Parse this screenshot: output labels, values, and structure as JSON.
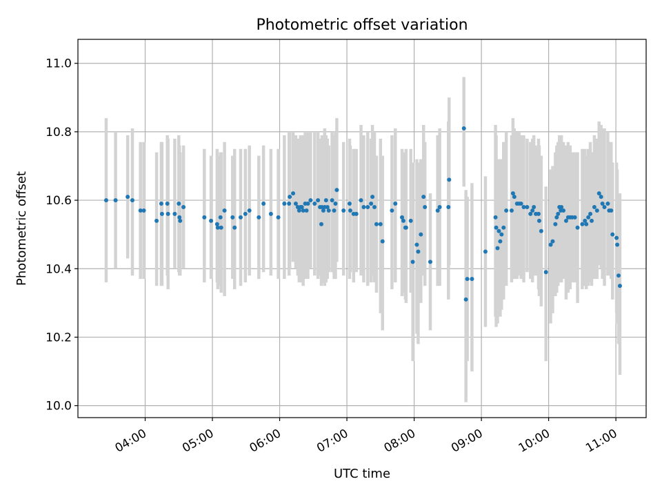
{
  "chart_data": {
    "type": "scatter",
    "title": "Photometric offset variation",
    "xlabel": "UTC time",
    "ylabel": "Photometric offset",
    "x_unit": "decimal hours (UTC)",
    "xlim": [
      3.0,
      11.45
    ],
    "ylim": [
      9.965,
      11.07
    ],
    "x_ticks": [
      {
        "value": 4,
        "label": "04:00"
      },
      {
        "value": 5,
        "label": "05:00"
      },
      {
        "value": 6,
        "label": "06:00"
      },
      {
        "value": 7,
        "label": "07:00"
      },
      {
        "value": 8,
        "label": "08:00"
      },
      {
        "value": 9,
        "label": "09:00"
      },
      {
        "value": 10,
        "label": "10:00"
      },
      {
        "value": 11,
        "label": "11:00"
      }
    ],
    "y_ticks": [
      {
        "value": 10.0,
        "label": "10.0"
      },
      {
        "value": 10.2,
        "label": "10.2"
      },
      {
        "value": 10.4,
        "label": "10.4"
      },
      {
        "value": 10.6,
        "label": "10.6"
      },
      {
        "value": 10.8,
        "label": "10.8"
      },
      {
        "value": 11.0,
        "label": "11.0"
      }
    ],
    "grid": true,
    "colors": {
      "points": "#1f77b4",
      "errorbars": "#d3d3d3",
      "grid": "#b0b0b0"
    },
    "series": [
      {
        "values": [
          [
            3.42,
            10.6,
            10.36,
            10.84
          ],
          [
            3.56,
            10.6,
            10.4,
            10.8
          ],
          [
            3.74,
            10.61,
            10.43,
            10.79
          ],
          [
            3.81,
            10.6,
            10.38,
            10.81
          ],
          [
            3.93,
            10.57,
            10.37,
            10.77
          ],
          [
            3.98,
            10.57,
            10.37,
            10.77
          ],
          [
            4.17,
            10.54,
            10.35,
            10.74
          ],
          [
            4.24,
            10.59,
            10.35,
            10.77
          ],
          [
            4.25,
            10.56,
            10.35,
            10.77
          ],
          [
            4.33,
            10.59,
            10.38,
            10.79
          ],
          [
            4.34,
            10.56,
            10.34,
            10.78
          ],
          [
            4.44,
            10.56,
            10.4,
            10.78
          ],
          [
            4.5,
            10.59,
            10.39,
            10.79
          ],
          [
            4.51,
            10.55,
            10.38,
            10.76
          ],
          [
            4.52,
            10.54,
            10.38,
            10.74
          ],
          [
            4.57,
            10.58,
            10.4,
            10.76
          ],
          [
            4.88,
            10.55,
            10.36,
            10.75
          ],
          [
            4.98,
            10.54,
            10.37,
            10.73
          ],
          [
            5.07,
            10.53,
            10.36,
            10.75
          ],
          [
            5.08,
            10.52,
            10.34,
            10.73
          ],
          [
            5.12,
            10.55,
            10.35,
            10.74
          ],
          [
            5.13,
            10.52,
            10.33,
            10.74
          ],
          [
            5.18,
            10.57,
            10.32,
            10.77
          ],
          [
            5.3,
            10.55,
            10.37,
            10.73
          ],
          [
            5.33,
            10.52,
            10.34,
            10.75
          ],
          [
            5.42,
            10.55,
            10.35,
            10.75
          ],
          [
            5.49,
            10.56,
            10.36,
            10.75
          ],
          [
            5.55,
            10.57,
            10.38,
            10.76
          ],
          [
            5.69,
            10.55,
            10.37,
            10.73
          ],
          [
            5.76,
            10.59,
            10.39,
            10.76
          ],
          [
            5.87,
            10.56,
            10.38,
            10.75
          ],
          [
            5.98,
            10.55,
            10.37,
            10.75
          ],
          [
            6.07,
            10.59,
            10.37,
            10.79
          ],
          [
            6.14,
            10.59,
            10.38,
            10.8
          ],
          [
            6.15,
            10.61,
            10.4,
            10.8
          ],
          [
            6.2,
            10.62,
            10.42,
            10.8
          ],
          [
            6.24,
            10.59,
            10.4,
            10.79
          ],
          [
            6.27,
            10.58,
            10.38,
            10.78
          ],
          [
            6.29,
            10.57,
            10.36,
            10.78
          ],
          [
            6.31,
            10.58,
            10.37,
            10.79
          ],
          [
            6.33,
            10.58,
            10.36,
            10.78
          ],
          [
            6.35,
            10.57,
            10.35,
            10.79
          ],
          [
            6.38,
            10.59,
            10.37,
            10.8
          ],
          [
            6.4,
            10.57,
            10.38,
            10.76
          ],
          [
            6.42,
            10.59,
            10.37,
            10.8
          ],
          [
            6.46,
            10.6,
            10.4,
            10.8
          ],
          [
            6.52,
            10.59,
            10.38,
            10.8
          ],
          [
            6.57,
            10.6,
            10.37,
            10.8
          ],
          [
            6.6,
            10.58,
            10.38,
            10.78
          ],
          [
            6.62,
            10.53,
            10.35,
            10.73
          ],
          [
            6.63,
            10.58,
            10.36,
            10.79
          ],
          [
            6.65,
            10.57,
            10.36,
            10.78
          ],
          [
            6.67,
            10.58,
            10.35,
            10.81
          ],
          [
            6.69,
            10.6,
            10.36,
            10.79
          ],
          [
            6.71,
            10.58,
            10.37,
            10.78
          ],
          [
            6.73,
            10.57,
            10.39,
            10.76
          ],
          [
            6.78,
            10.6,
            10.39,
            10.8
          ],
          [
            6.81,
            10.57,
            10.37,
            10.79
          ],
          [
            6.83,
            10.59,
            10.37,
            10.8
          ],
          [
            6.85,
            10.63,
            10.42,
            10.84
          ],
          [
            6.95,
            10.57,
            10.38,
            10.77
          ],
          [
            7.04,
            10.59,
            10.37,
            10.78
          ],
          [
            7.05,
            10.57,
            10.39,
            10.76
          ],
          [
            7.1,
            10.56,
            10.36,
            10.75
          ],
          [
            7.14,
            10.56,
            10.39,
            10.75
          ],
          [
            7.21,
            10.6,
            10.38,
            10.82
          ],
          [
            7.25,
            10.58,
            10.36,
            10.79
          ],
          [
            7.31,
            10.58,
            10.35,
            10.8
          ],
          [
            7.36,
            10.59,
            10.36,
            10.78
          ],
          [
            7.38,
            10.61,
            10.38,
            10.82
          ],
          [
            7.41,
            10.58,
            10.36,
            10.8
          ],
          [
            7.44,
            10.53,
            10.33,
            10.73
          ],
          [
            7.5,
            10.53,
            10.27,
            10.78
          ],
          [
            7.53,
            10.48,
            10.22,
            10.73
          ],
          [
            7.67,
            10.57,
            10.34,
            10.79
          ],
          [
            7.72,
            10.59,
            10.36,
            10.81
          ],
          [
            7.82,
            10.55,
            10.32,
            10.75
          ],
          [
            7.84,
            10.54,
            10.33,
            10.74
          ],
          [
            7.87,
            10.52,
            10.31,
            10.73
          ],
          [
            7.88,
            10.52,
            10.3,
            10.75
          ],
          [
            7.95,
            10.54,
            10.33,
            10.75
          ],
          [
            7.98,
            10.42,
            10.13,
            10.71
          ],
          [
            8.04,
            10.47,
            10.21,
            10.72
          ],
          [
            8.06,
            10.45,
            10.18,
            10.71
          ],
          [
            8.1,
            10.5,
            10.3,
            10.72
          ],
          [
            8.14,
            10.61,
            10.38,
            10.82
          ],
          [
            8.16,
            10.58,
            10.35,
            10.77
          ],
          [
            8.24,
            10.42,
            10.22,
            10.62
          ],
          [
            8.35,
            10.57,
            10.35,
            10.79
          ],
          [
            8.38,
            10.58,
            10.35,
            10.81
          ],
          [
            8.51,
            10.58,
            10.31,
            10.83
          ],
          [
            8.52,
            10.66,
            10.41,
            10.9
          ],
          [
            8.74,
            10.81,
            10.64,
            10.96
          ],
          [
            8.77,
            10.31,
            10.01,
            10.63
          ],
          [
            8.79,
            10.37,
            10.13,
            10.61
          ],
          [
            8.86,
            10.37,
            10.1,
            10.65
          ],
          [
            9.06,
            10.45,
            10.23,
            10.67
          ],
          [
            9.21,
            10.55,
            10.26,
            10.82
          ],
          [
            9.22,
            10.52,
            10.23,
            10.79
          ],
          [
            9.24,
            10.46,
            10.24,
            10.69
          ],
          [
            9.26,
            10.51,
            10.29,
            10.72
          ],
          [
            9.28,
            10.48,
            10.26,
            10.71
          ],
          [
            9.3,
            10.5,
            10.28,
            10.72
          ],
          [
            9.33,
            10.52,
            10.31,
            10.77
          ],
          [
            9.37,
            10.57,
            10.35,
            10.8
          ],
          [
            9.45,
            10.57,
            10.36,
            10.79
          ],
          [
            9.47,
            10.62,
            10.38,
            10.84
          ],
          [
            9.49,
            10.61,
            10.37,
            10.81
          ],
          [
            9.53,
            10.59,
            10.37,
            10.8
          ],
          [
            9.56,
            10.59,
            10.38,
            10.8
          ],
          [
            9.59,
            10.59,
            10.37,
            10.79
          ],
          [
            9.63,
            10.58,
            10.36,
            10.79
          ],
          [
            9.68,
            10.58,
            10.39,
            10.78
          ],
          [
            9.73,
            10.56,
            10.37,
            10.77
          ],
          [
            9.76,
            10.57,
            10.36,
            10.78
          ],
          [
            9.78,
            10.58,
            10.38,
            10.79
          ],
          [
            9.81,
            10.56,
            10.38,
            10.76
          ],
          [
            9.85,
            10.56,
            10.34,
            10.78
          ],
          [
            9.86,
            10.54,
            10.32,
            10.76
          ],
          [
            9.89,
            10.51,
            10.29,
            10.73
          ],
          [
            9.96,
            10.39,
            10.13,
            10.64
          ],
          [
            10.03,
            10.47,
            10.24,
            10.69
          ],
          [
            10.06,
            10.48,
            10.27,
            10.7
          ],
          [
            10.1,
            10.53,
            10.32,
            10.74
          ],
          [
            10.12,
            10.55,
            10.33,
            10.76
          ],
          [
            10.14,
            10.56,
            10.35,
            10.77
          ],
          [
            10.16,
            10.58,
            10.38,
            10.79
          ],
          [
            10.18,
            10.57,
            10.36,
            10.78
          ],
          [
            10.19,
            10.58,
            10.36,
            10.79
          ],
          [
            10.22,
            10.57,
            10.37,
            10.77
          ],
          [
            10.26,
            10.54,
            10.31,
            10.76
          ],
          [
            10.29,
            10.55,
            10.33,
            10.77
          ],
          [
            10.32,
            10.55,
            10.34,
            10.76
          ],
          [
            10.35,
            10.55,
            10.36,
            10.74
          ],
          [
            10.39,
            10.55,
            10.36,
            10.74
          ],
          [
            10.43,
            10.52,
            10.3,
            10.74
          ],
          [
            10.5,
            10.53,
            10.34,
            10.75
          ],
          [
            10.54,
            10.54,
            10.35,
            10.75
          ],
          [
            10.56,
            10.53,
            10.34,
            10.73
          ],
          [
            10.59,
            10.55,
            10.35,
            10.75
          ],
          [
            10.62,
            10.56,
            10.36,
            10.77
          ],
          [
            10.64,
            10.54,
            10.35,
            10.74
          ],
          [
            10.68,
            10.58,
            10.37,
            10.79
          ],
          [
            10.72,
            10.57,
            10.37,
            10.78
          ],
          [
            10.75,
            10.62,
            10.41,
            10.83
          ],
          [
            10.78,
            10.61,
            10.4,
            10.82
          ],
          [
            10.8,
            10.59,
            10.37,
            10.81
          ],
          [
            10.83,
            10.58,
            10.35,
            10.81
          ],
          [
            10.88,
            10.59,
            10.38,
            10.8
          ],
          [
            10.9,
            10.57,
            10.38,
            10.77
          ],
          [
            10.93,
            10.57,
            10.37,
            10.77
          ],
          [
            10.95,
            10.5,
            10.31,
            10.71
          ],
          [
            11.01,
            10.49,
            10.27,
            10.71
          ],
          [
            11.02,
            10.47,
            10.24,
            10.69
          ],
          [
            11.04,
            10.38,
            10.18,
            10.59
          ],
          [
            11.06,
            10.35,
            10.09,
            10.62
          ]
        ]
      }
    ]
  }
}
